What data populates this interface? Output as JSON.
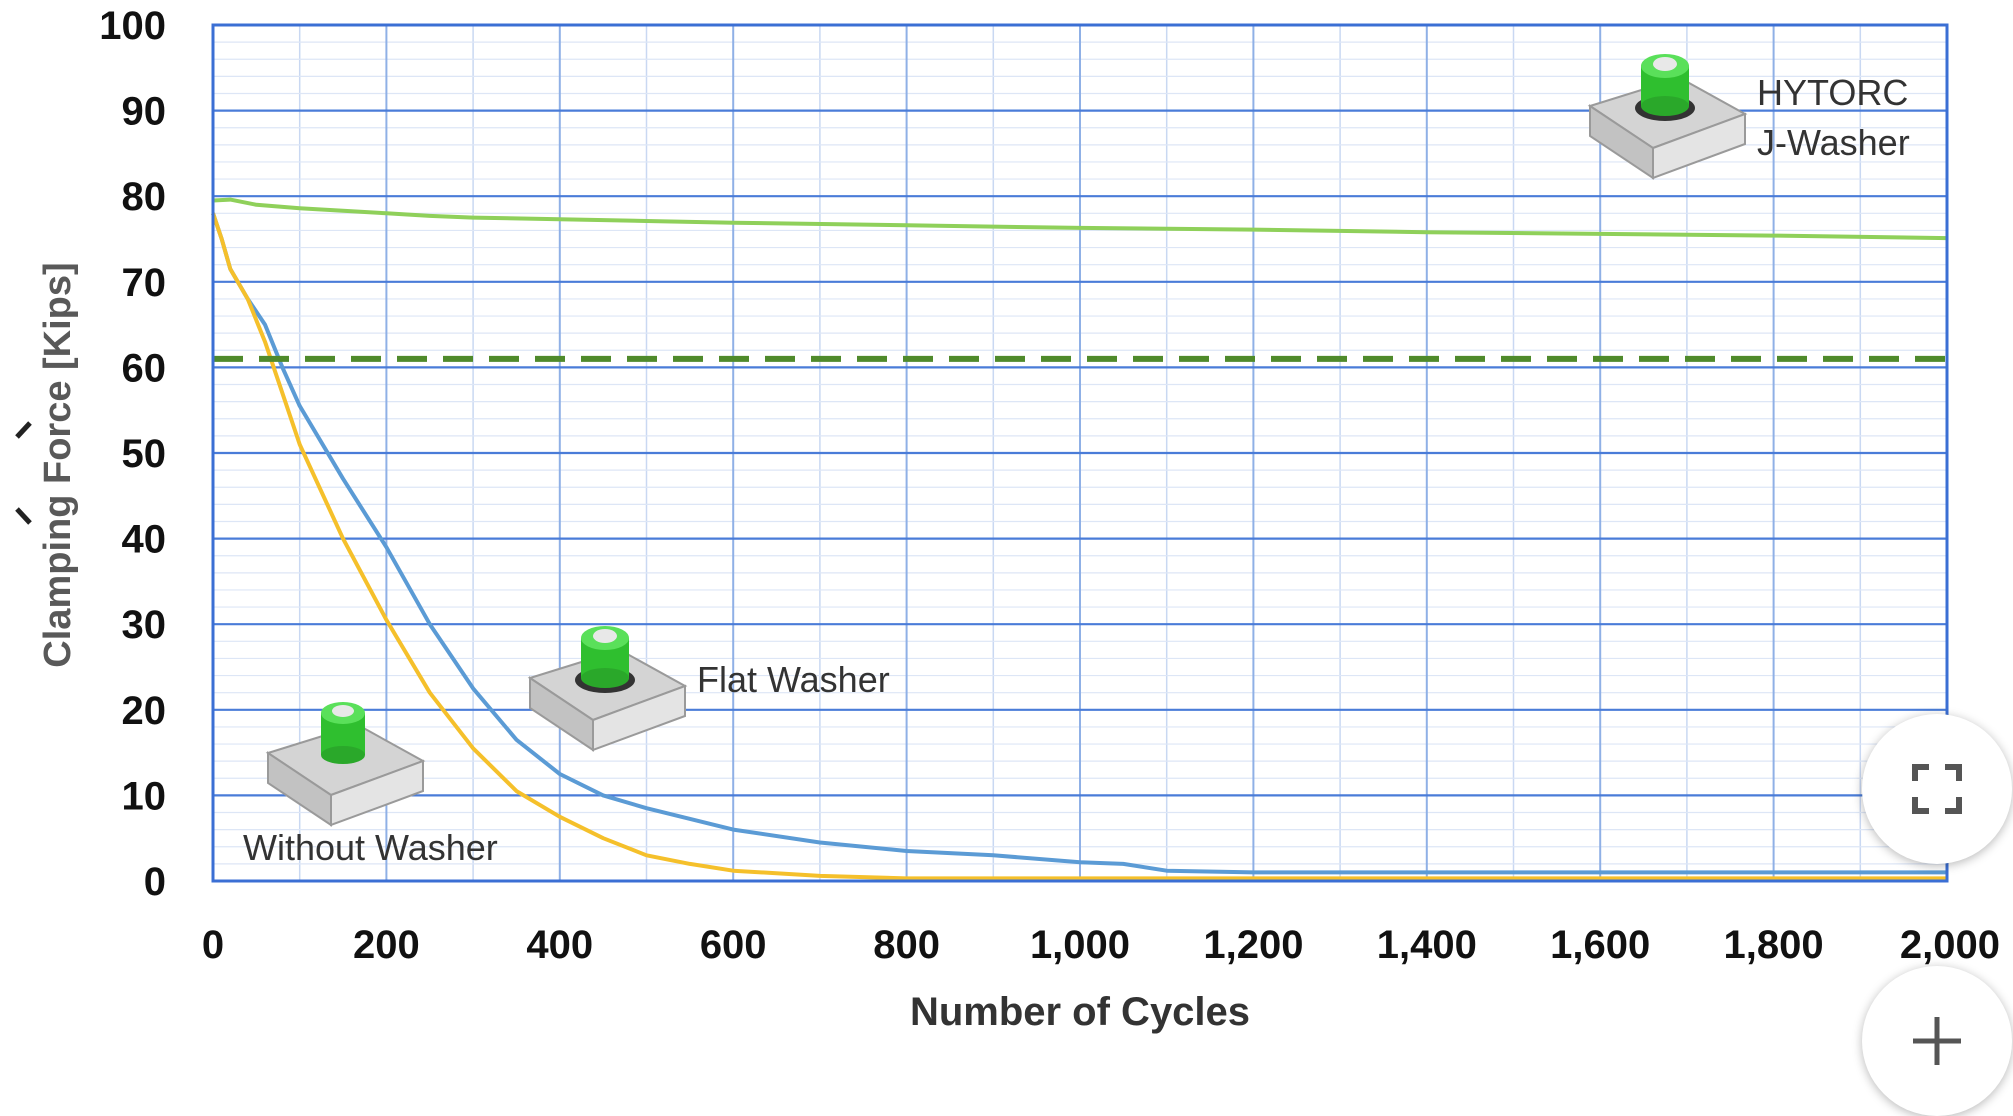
{
  "chart_data": {
    "type": "line",
    "title": "",
    "xlabel": "Number of Cycles",
    "ylabel": "Clamping Force [Kips]",
    "xlim": [
      0,
      2000
    ],
    "ylim": [
      0,
      100
    ],
    "x_ticks": [
      0,
      200,
      400,
      600,
      800,
      1000,
      1200,
      1400,
      1600,
      1800,
      2000
    ],
    "x_tick_labels": [
      "0",
      "200",
      "400",
      "600",
      "800",
      "1,000",
      "1,200",
      "1,400",
      "1,600",
      "1,800",
      "2,000"
    ],
    "y_ticks": [
      0,
      10,
      20,
      30,
      40,
      50,
      60,
      70,
      80,
      90,
      100
    ],
    "y_tick_labels": [
      "0",
      "10",
      "20",
      "30",
      "40",
      "50",
      "60",
      "70",
      "80",
      "90",
      "100"
    ],
    "grid": true,
    "reference_line": {
      "y": 61,
      "style": "dashed",
      "color": "#4f8a2b"
    },
    "series": [
      {
        "name": "HYTORC J-Washer",
        "color": "#8fd05a",
        "x": [
          0,
          20,
          50,
          100,
          150,
          200,
          250,
          300,
          400,
          500,
          600,
          800,
          1000,
          1200,
          1400,
          1600,
          1800,
          2000
        ],
        "y": [
          79.5,
          79.6,
          79,
          78.6,
          78.3,
          78,
          77.7,
          77.5,
          77.3,
          77.1,
          76.9,
          76.6,
          76.3,
          76.1,
          75.8,
          75.6,
          75.4,
          75.1
        ]
      },
      {
        "name": "Flat Washer",
        "color": "#5b9bd5",
        "x": [
          0,
          10,
          20,
          40,
          60,
          80,
          100,
          150,
          200,
          250,
          300,
          350,
          400,
          450,
          500,
          600,
          700,
          800,
          900,
          1000,
          1050,
          1100,
          1200,
          1400,
          1600,
          1800,
          2000
        ],
        "y": [
          78,
          75,
          71.5,
          68,
          65,
          60,
          55.5,
          47,
          39,
          30,
          22.5,
          16.5,
          12.5,
          10,
          8.5,
          6,
          4.5,
          3.5,
          3,
          2.2,
          2,
          1.2,
          1,
          1,
          1,
          1,
          1
        ]
      },
      {
        "name": "Without Washer",
        "color": "#f5c02b",
        "x": [
          0,
          10,
          20,
          40,
          60,
          80,
          100,
          150,
          200,
          250,
          300,
          350,
          400,
          450,
          500,
          550,
          600,
          700,
          800,
          1000,
          1200,
          1400,
          1600,
          1800,
          2000
        ],
        "y": [
          78,
          75,
          71.5,
          68,
          63,
          57,
          51,
          40,
          30.5,
          22,
          15.5,
          10.5,
          7.5,
          5,
          3,
          2,
          1.2,
          0.6,
          0.3,
          0.3,
          0.3,
          0.3,
          0.3,
          0.3,
          0.3
        ]
      }
    ],
    "annotations": [
      "HYTORC",
      "J-Washer",
      "Flat Washer",
      "Without Washer"
    ]
  },
  "icons": {
    "expand": "expand-icon",
    "plus": "plus-icon",
    "washer_images": "bolt-on-block-icon"
  }
}
